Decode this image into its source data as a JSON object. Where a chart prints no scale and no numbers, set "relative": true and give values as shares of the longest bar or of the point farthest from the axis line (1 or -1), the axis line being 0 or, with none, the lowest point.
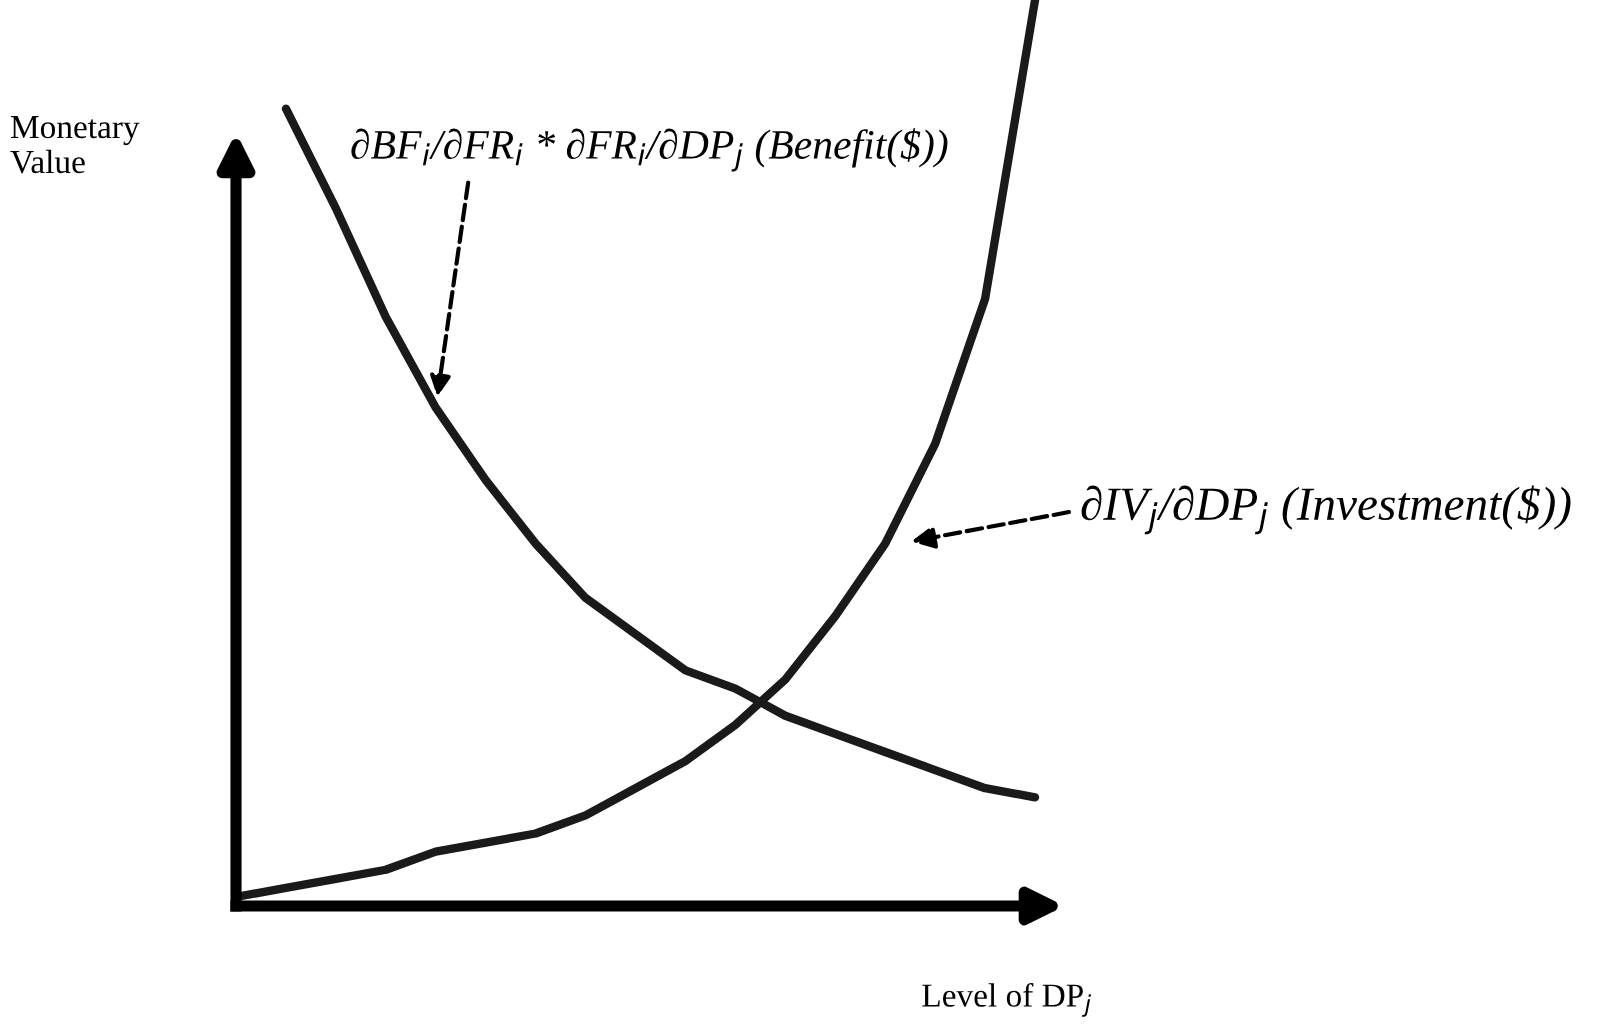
{
  "chart_data": {
    "type": "line",
    "relative": true,
    "xlabel": "Level of DP$_{j}$",
    "ylabel": "Monetary Value",
    "categories": [
      null,
      null,
      null,
      null,
      null,
      null,
      null,
      null,
      null,
      null,
      null,
      null,
      null,
      null,
      null,
      null,
      null
    ],
    "series": [
      {
        "color": "#1a1a1a",
        "values": [
          null,
          0.88,
          0.77,
          0.65,
          0.55,
          0.47,
          0.4,
          0.34,
          0.3,
          0.26,
          0.24,
          0.21,
          0.19,
          0.17,
          0.15,
          0.13,
          0.12
        ]
      },
      {
        "color": "#1a1a1a",
        "values": [
          0.01,
          0.02,
          0.03,
          0.04,
          0.06,
          0.07,
          0.08,
          0.1,
          0.13,
          0.16,
          0.2,
          0.25,
          0.32,
          0.4,
          0.51,
          0.67,
          1.0
        ]
      }
    ],
    "annotations": [
      "∂BF$_{i}$/∂FR$_{i}$ * ∂FR$_{i}$/∂DP$_{j}$ (Benefit($))",
      "∂IV$_{j}$/∂DP$_{j}$ (Investment($))"
    ],
    "grid": false,
    "legend": false,
    "line_style": "solid",
    "marker": "none"
  }
}
